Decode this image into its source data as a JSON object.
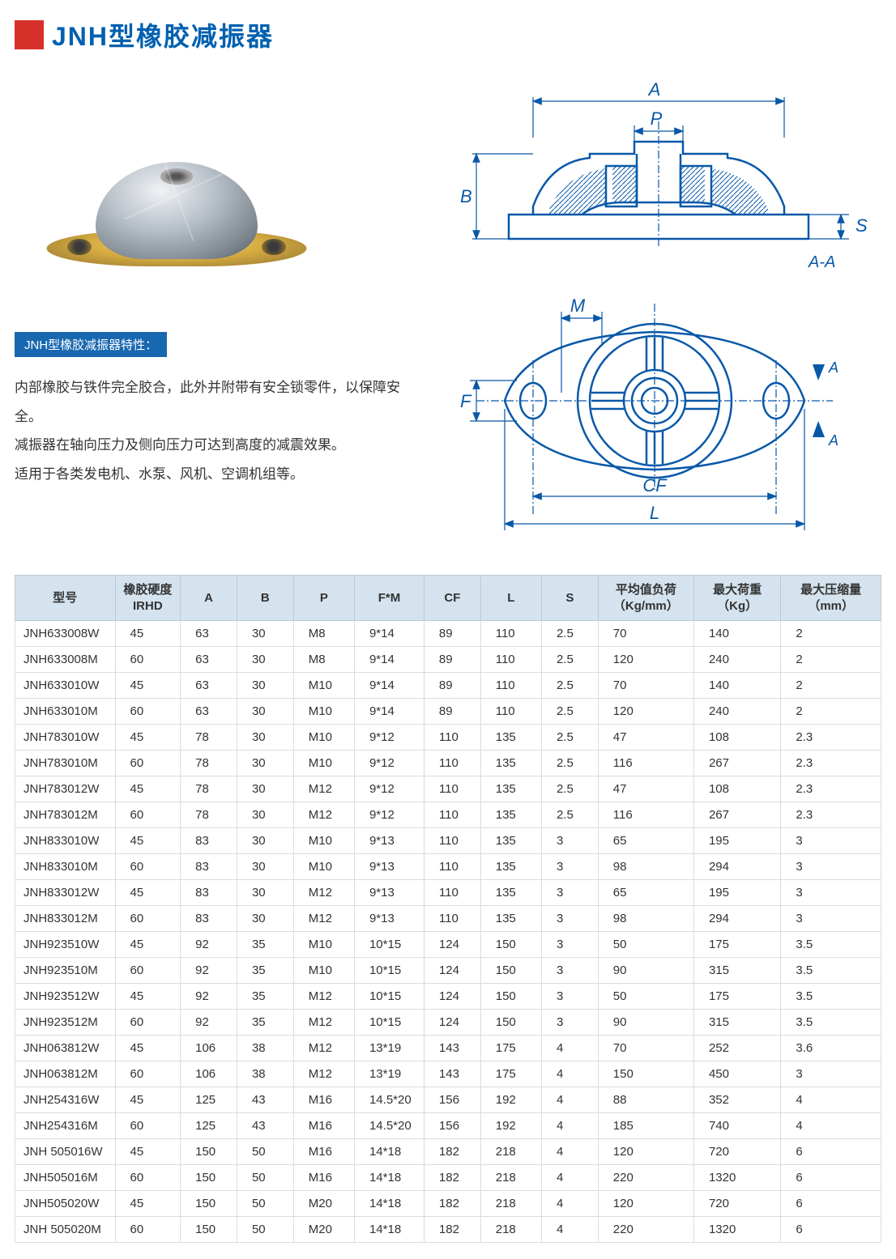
{
  "title": "JNH型橡胶减振器",
  "feature_label": "JNH型橡胶减振器特性：",
  "description_lines": [
    "内部橡胶与铁件完全胶合，此外并附带有安全锁零件，以保障安全。",
    "减振器在轴向压力及侧向压力可达到高度的减震效果。",
    "适用于各类发电机、水泵、风机、空调机组等。"
  ],
  "diagram_labels": {
    "A": "A",
    "B": "B",
    "P": "P",
    "S": "S",
    "AA": "A-A",
    "M": "M",
    "F": "F",
    "CF": "CF",
    "L": "L"
  },
  "colors": {
    "title_blue": "#0060b0",
    "red_square": "#d6302a",
    "feature_bg": "#1868b0",
    "diagram_blue": "#0858a8",
    "table_header_bg": "#d4e3ee",
    "table_border": "#d8dde0"
  },
  "table": {
    "columns": [
      "型号",
      "橡胶硬度\nIRHD",
      "A",
      "B",
      "P",
      "F*M",
      "CF",
      "L",
      "S",
      "平均值负荷\n（Kg/mm）",
      "最大荷重\n（Kg）",
      "最大压缩量\n（mm）"
    ],
    "col_widths_pct": [
      11.5,
      7.5,
      6.5,
      6.5,
      7,
      8,
      6.5,
      7,
      6.5,
      11,
      10,
      11.5
    ],
    "rows": [
      [
        "JNH633008W",
        "45",
        "63",
        "30",
        "M8",
        "9*14",
        "89",
        "110",
        "2.5",
        "70",
        "140",
        "2"
      ],
      [
        "JNH633008M",
        "60",
        "63",
        "30",
        "M8",
        "9*14",
        "89",
        "110",
        "2.5",
        "120",
        "240",
        "2"
      ],
      [
        "JNH633010W",
        "45",
        "63",
        "30",
        "M10",
        "9*14",
        "89",
        "110",
        "2.5",
        "70",
        "140",
        "2"
      ],
      [
        "JNH633010M",
        "60",
        "63",
        "30",
        "M10",
        "9*14",
        "89",
        "110",
        "2.5",
        "120",
        "240",
        "2"
      ],
      [
        "JNH783010W",
        "45",
        "78",
        "30",
        "M10",
        "9*12",
        "110",
        "135",
        "2.5",
        "47",
        "108",
        "2.3"
      ],
      [
        "JNH783010M",
        "60",
        "78",
        "30",
        "M10",
        "9*12",
        "110",
        "135",
        "2.5",
        "116",
        "267",
        "2.3"
      ],
      [
        "JNH783012W",
        "45",
        "78",
        "30",
        "M12",
        "9*12",
        "110",
        "135",
        "2.5",
        "47",
        "108",
        "2.3"
      ],
      [
        "JNH783012M",
        "60",
        "78",
        "30",
        "M12",
        "9*12",
        "110",
        "135",
        "2.5",
        "116",
        "267",
        "2.3"
      ],
      [
        "JNH833010W",
        "45",
        "83",
        "30",
        "M10",
        "9*13",
        "110",
        "135",
        "3",
        "65",
        "195",
        "3"
      ],
      [
        "JNH833010M",
        "60",
        "83",
        "30",
        "M10",
        "9*13",
        "110",
        "135",
        "3",
        "98",
        "294",
        "3"
      ],
      [
        "JNH833012W",
        "45",
        "83",
        "30",
        "M12",
        "9*13",
        "110",
        "135",
        "3",
        "65",
        "195",
        "3"
      ],
      [
        "JNH833012M",
        "60",
        "83",
        "30",
        "M12",
        "9*13",
        "110",
        "135",
        "3",
        "98",
        "294",
        "3"
      ],
      [
        "JNH923510W",
        "45",
        "92",
        "35",
        "M10",
        "10*15",
        "124",
        "150",
        "3",
        "50",
        "175",
        "3.5"
      ],
      [
        "JNH923510M",
        "60",
        "92",
        "35",
        "M10",
        "10*15",
        "124",
        "150",
        "3",
        "90",
        "315",
        "3.5"
      ],
      [
        "JNH923512W",
        "45",
        "92",
        "35",
        "M12",
        "10*15",
        "124",
        "150",
        "3",
        "50",
        "175",
        "3.5"
      ],
      [
        "JNH923512M",
        "60",
        "92",
        "35",
        "M12",
        "10*15",
        "124",
        "150",
        "3",
        "90",
        "315",
        "3.5"
      ],
      [
        "JNH063812W",
        "45",
        "106",
        "38",
        "M12",
        "13*19",
        "143",
        "175",
        "4",
        "70",
        "252",
        "3.6"
      ],
      [
        "JNH063812M",
        "60",
        "106",
        "38",
        "M12",
        "13*19",
        "143",
        "175",
        "4",
        "150",
        "450",
        "3"
      ],
      [
        "JNH254316W",
        "45",
        "125",
        "43",
        "M16",
        "14.5*20",
        "156",
        "192",
        "4",
        "88",
        "352",
        "4"
      ],
      [
        "JNH254316M",
        "60",
        "125",
        "43",
        "M16",
        "14.5*20",
        "156",
        "192",
        "4",
        "185",
        "740",
        "4"
      ],
      [
        "JNH 505016W",
        "45",
        "150",
        "50",
        "M16",
        "14*18",
        "182",
        "218",
        "4",
        "120",
        "720",
        "6"
      ],
      [
        "JNH505016M",
        "60",
        "150",
        "50",
        "M16",
        "14*18",
        "182",
        "218",
        "4",
        "220",
        "1320",
        "6"
      ],
      [
        "JNH505020W",
        "45",
        "150",
        "50",
        "M20",
        "14*18",
        "182",
        "218",
        "4",
        "120",
        "720",
        "6"
      ],
      [
        "JNH 505020M",
        "60",
        "150",
        "50",
        "M20",
        "14*18",
        "182",
        "218",
        "4",
        "220",
        "1320",
        "6"
      ]
    ]
  }
}
